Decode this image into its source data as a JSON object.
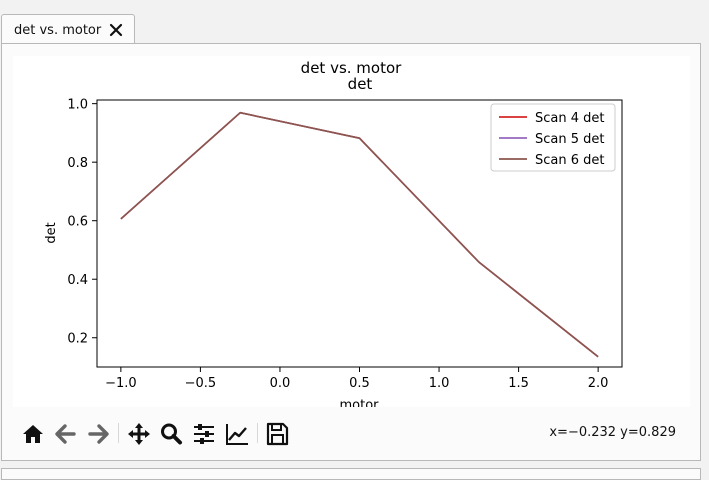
{
  "tab": {
    "label": "det vs. motor"
  },
  "figure": {
    "suptitle": "det vs. motor",
    "coords_text": "x=−0.232  y=0.829"
  },
  "toolbar": {
    "icons": [
      "home-icon",
      "back-arrow-icon",
      "forward-arrow-icon",
      "pan-icon",
      "zoom-icon",
      "configure-subplots-icon",
      "edit-axis-icon",
      "save-icon"
    ]
  },
  "chart_data": {
    "type": "line",
    "title": "det",
    "xlabel": "motor",
    "ylabel": "det",
    "xlim": [
      -1.15,
      2.15
    ],
    "ylim": [
      0.1,
      1.0125
    ],
    "xticks": [
      -1.0,
      -0.5,
      0.0,
      0.5,
      1.0,
      1.5,
      2.0
    ],
    "xtick_labels": [
      "−1.0",
      "−0.5",
      "0.0",
      "0.5",
      "1.0",
      "1.5",
      "2.0"
    ],
    "yticks": [
      0.2,
      0.4,
      0.6,
      0.8,
      1.0
    ],
    "ytick_labels": [
      "0.2",
      "0.4",
      "0.6",
      "0.8",
      "1.0"
    ],
    "x": [
      -1.0,
      -0.25,
      0.5,
      1.25,
      2.0
    ],
    "series": [
      {
        "name": "Scan 4 det",
        "color": "#d62728",
        "values": [
          0.606,
          0.969,
          0.882,
          0.459,
          0.135
        ]
      },
      {
        "name": "Scan 5 det",
        "color": "#9467bd",
        "values": [
          0.606,
          0.969,
          0.882,
          0.459,
          0.135
        ]
      },
      {
        "name": "Scan 6 det",
        "color": "#8c564b",
        "values": [
          0.606,
          0.969,
          0.882,
          0.459,
          0.135
        ]
      }
    ],
    "grid": false,
    "legend_position": "top-right"
  }
}
